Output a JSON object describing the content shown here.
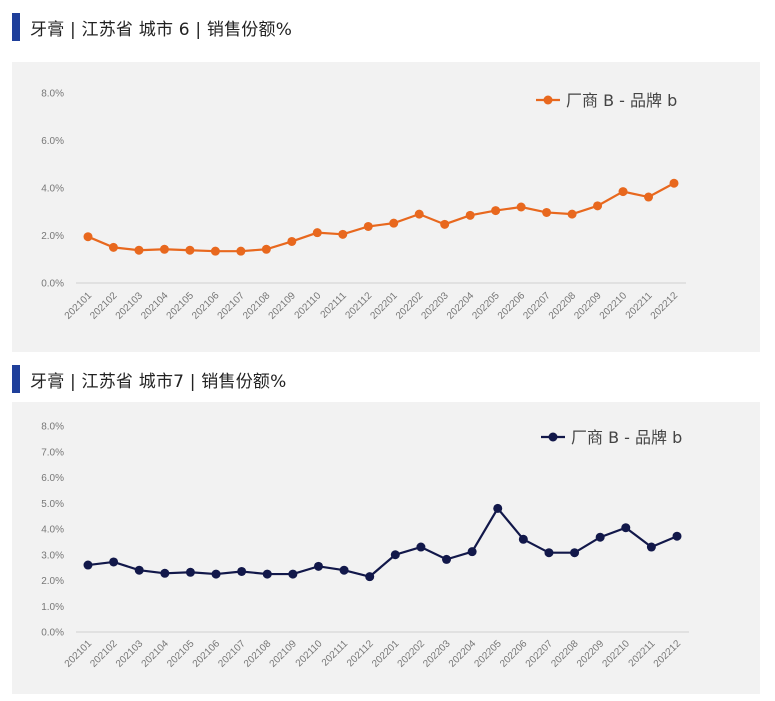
{
  "charts": [
    {
      "title": "牙膏 | 江苏省 城市 6 |  销售份额%",
      "color": "#e8681e",
      "chart_data": {
        "type": "line",
        "title": "牙膏 | 江苏省 城市 6 |  销售份额%",
        "categories": [
          "202101",
          "202102",
          "202103",
          "202104",
          "202105",
          "202106",
          "202107",
          "202108",
          "202109",
          "202110",
          "202111",
          "202112",
          "202201",
          "202202",
          "202203",
          "202204",
          "202205",
          "202206",
          "202207",
          "202208",
          "202209",
          "202210",
          "202211",
          "202212"
        ],
        "series": [
          {
            "name": "厂商 B - 品牌 b",
            "values": [
              1.95,
              1.5,
              1.38,
              1.42,
              1.38,
              1.34,
              1.34,
              1.42,
              1.75,
              2.12,
              2.05,
              2.38,
              2.52,
              2.9,
              2.47,
              2.85,
              3.05,
              3.2,
              2.97,
              2.9,
              3.25,
              3.85,
              3.62,
              4.2
            ]
          }
        ],
        "yticks": [
          "0.0%",
          "2.0%",
          "4.0%",
          "6.0%",
          "8.0%"
        ],
        "ylim": [
          0,
          8
        ],
        "grid": false,
        "legend_position": "top-right"
      }
    },
    {
      "title": "牙膏 | 江苏省 城市7 | 销售份额%",
      "color": "#12184a",
      "chart_data": {
        "type": "line",
        "title": "牙膏 | 江苏省 城市7 | 销售份额%",
        "categories": [
          "202101",
          "202102",
          "202103",
          "202104",
          "202105",
          "202106",
          "202107",
          "202108",
          "202109",
          "202110",
          "202111",
          "202112",
          "202201",
          "202202",
          "202203",
          "202204",
          "202205",
          "202206",
          "202207",
          "202208",
          "202209",
          "202210",
          "202211",
          "202212"
        ],
        "series": [
          {
            "name": "厂商 B - 品牌 b",
            "values": [
              2.6,
              2.72,
              2.4,
              2.28,
              2.32,
              2.25,
              2.35,
              2.25,
              2.25,
              2.55,
              2.4,
              2.15,
              3.0,
              3.3,
              2.82,
              3.12,
              4.8,
              3.6,
              3.08,
              3.08,
              3.68,
              4.05,
              3.3,
              3.72
            ]
          }
        ],
        "yticks": [
          "0.0%",
          "1.0%",
          "2.0%",
          "3.0%",
          "4.0%",
          "5.0%",
          "6.0%",
          "7.0%",
          "8.0%"
        ],
        "ylim": [
          0,
          8
        ],
        "grid": false,
        "legend_position": "top-right"
      }
    }
  ]
}
